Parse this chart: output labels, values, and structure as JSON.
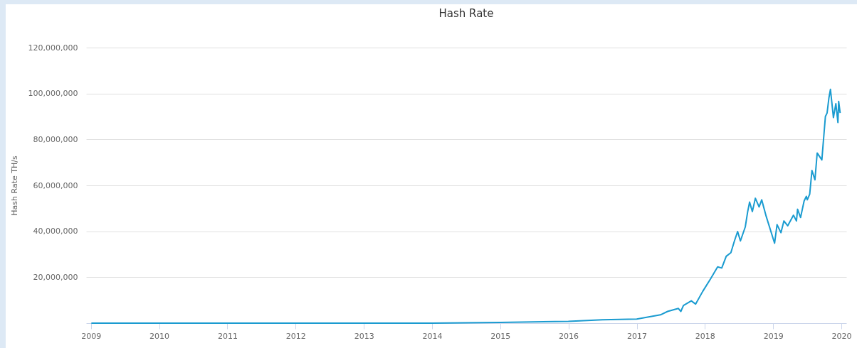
{
  "chart_data": {
    "type": "line",
    "title": "Hash Rate",
    "ylabel": "Hash Rate TH/s",
    "x": [
      "2009-01-03",
      "2011-01-01",
      "2013-01-01",
      "2014-01-01",
      "2015-01-01",
      "2016-01-01",
      "2016-07-01",
      "2017-01-01",
      "2017-05-08",
      "2017-06-15",
      "2017-08-12",
      "2017-08-25",
      "2017-09-08",
      "2017-10-20",
      "2017-11-12",
      "2017-12-20",
      "2018-02-01",
      "2018-03-10",
      "2018-04-01",
      "2018-04-25",
      "2018-05-20",
      "2018-06-08",
      "2018-06-25",
      "2018-07-10",
      "2018-08-05",
      "2018-08-18",
      "2018-08-28",
      "2018-09-12",
      "2018-09-28",
      "2018-10-18",
      "2018-11-01",
      "2018-11-25",
      "2019-01-09",
      "2019-01-22",
      "2019-02-12",
      "2019-02-28",
      "2019-03-20",
      "2019-04-20",
      "2019-05-06",
      "2019-05-12",
      "2019-05-28",
      "2019-06-16",
      "2019-06-28",
      "2019-07-03",
      "2019-07-16",
      "2019-07-28",
      "2019-08-13",
      "2019-08-25",
      "2019-09-19",
      "2019-10-08",
      "2019-10-17",
      "2019-10-27",
      "2019-11-04",
      "2019-11-20",
      "2019-12-03",
      "2019-12-14",
      "2019-12-18",
      "2019-12-26"
    ],
    "series": [
      {
        "color": "#1a9bd0",
        "values": [
          0,
          0,
          0,
          0,
          300000,
          800000,
          1500000,
          1800000,
          3600000,
          5100000,
          6400000,
          5100000,
          7700000,
          9700000,
          8300000,
          13800000,
          19400000,
          24500000,
          24000000,
          29100000,
          30700000,
          35800000,
          39900000,
          35800000,
          41900000,
          48600000,
          52700000,
          48600000,
          54400000,
          50600000,
          53700000,
          46500000,
          34800000,
          42900000,
          39400000,
          44500000,
          42400000,
          47000000,
          44500000,
          49600000,
          46000000,
          53200000,
          55200000,
          53700000,
          56200000,
          66500000,
          62400000,
          74100000,
          71100000,
          90000000,
          91500000,
          98200000,
          101800000,
          89500000,
          95600000,
          87400000,
          96600000,
          91500000
        ]
      }
    ],
    "xlim": [
      "2008-12-06",
      "2020-01-28"
    ],
    "xticks": [
      "2009",
      "2010",
      "2011",
      "2012",
      "2013",
      "2014",
      "2015",
      "2016",
      "2017",
      "2018",
      "2019",
      "2020"
    ],
    "ylim": [
      0,
      120000000
    ],
    "yticks": [
      {
        "value": 20000000,
        "label": "20,000,000"
      },
      {
        "value": 40000000,
        "label": "40,000,000"
      },
      {
        "value": 60000000,
        "label": "60,000,000"
      },
      {
        "value": 80000000,
        "label": "80,000,000"
      },
      {
        "value": 100000000,
        "label": "100,000,000"
      },
      {
        "value": 120000000,
        "label": "120,000,000"
      }
    ],
    "grid": "y",
    "line_style": "solid"
  }
}
